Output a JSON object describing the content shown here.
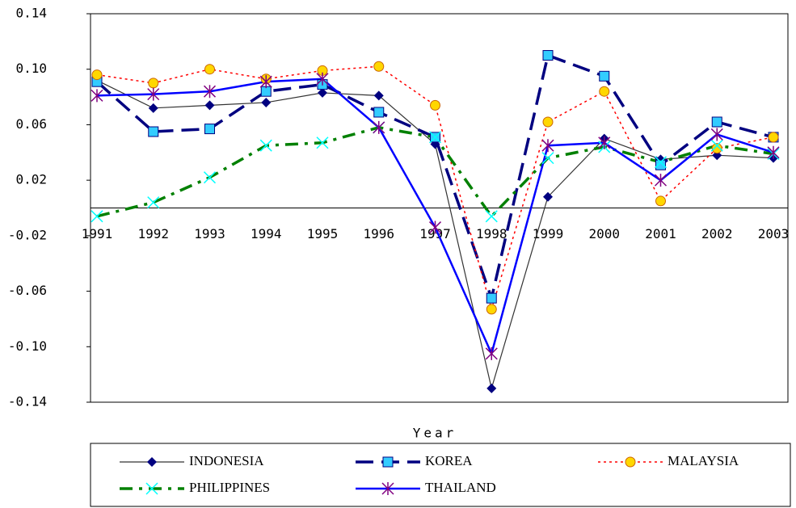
{
  "chart_data": {
    "type": "line",
    "xlabel": "Year",
    "categories": [
      "1991",
      "1992",
      "1993",
      "1994",
      "1995",
      "1996",
      "1997",
      "1998",
      "1999",
      "2000",
      "2001",
      "2002",
      "2003"
    ],
    "series": [
      {
        "name": "INDONESIA",
        "color": "#333333",
        "marker_color": "#000080",
        "values": [
          0.092,
          0.072,
          0.074,
          0.076,
          0.083,
          0.081,
          0.046,
          -0.13,
          0.008,
          0.05,
          0.035,
          0.038,
          0.036
        ]
      },
      {
        "name": "KOREA",
        "color": "#000080",
        "marker_color": "#33ccff",
        "values": [
          0.091,
          0.055,
          0.057,
          0.084,
          0.089,
          0.069,
          0.051,
          -0.065,
          0.11,
          0.095,
          0.031,
          0.062,
          0.051
        ]
      },
      {
        "name": "MALAYSIA",
        "color": "#ff0000",
        "marker_color": "#ffd700",
        "values": [
          0.096,
          0.09,
          0.1,
          0.093,
          0.099,
          0.102,
          0.074,
          -0.073,
          0.062,
          0.084,
          0.005,
          0.043,
          0.051
        ]
      },
      {
        "name": "PHILIPPINES",
        "color": "#008000",
        "marker_color": "#00ffff",
        "values": [
          -0.006,
          0.004,
          0.022,
          0.045,
          0.047,
          0.058,
          0.051,
          -0.006,
          0.036,
          0.044,
          0.033,
          0.045,
          0.039
        ]
      },
      {
        "name": "THAILAND",
        "color": "#0000ff",
        "marker_color": "#800080",
        "values": [
          0.081,
          0.082,
          0.084,
          0.091,
          0.093,
          0.058,
          -0.014,
          -0.105,
          0.045,
          0.047,
          0.02,
          0.053,
          0.04
        ]
      }
    ],
    "ylim": [
      -0.14,
      0.14
    ],
    "yticks": [
      -0.14,
      {
        "value": -0.1,
        "label": "-0.10"
      },
      -0.06,
      -0.02,
      0.02,
      0.06,
      {
        "value": 0.1,
        "label": "0.10"
      },
      0.14
    ],
    "grid": false
  }
}
